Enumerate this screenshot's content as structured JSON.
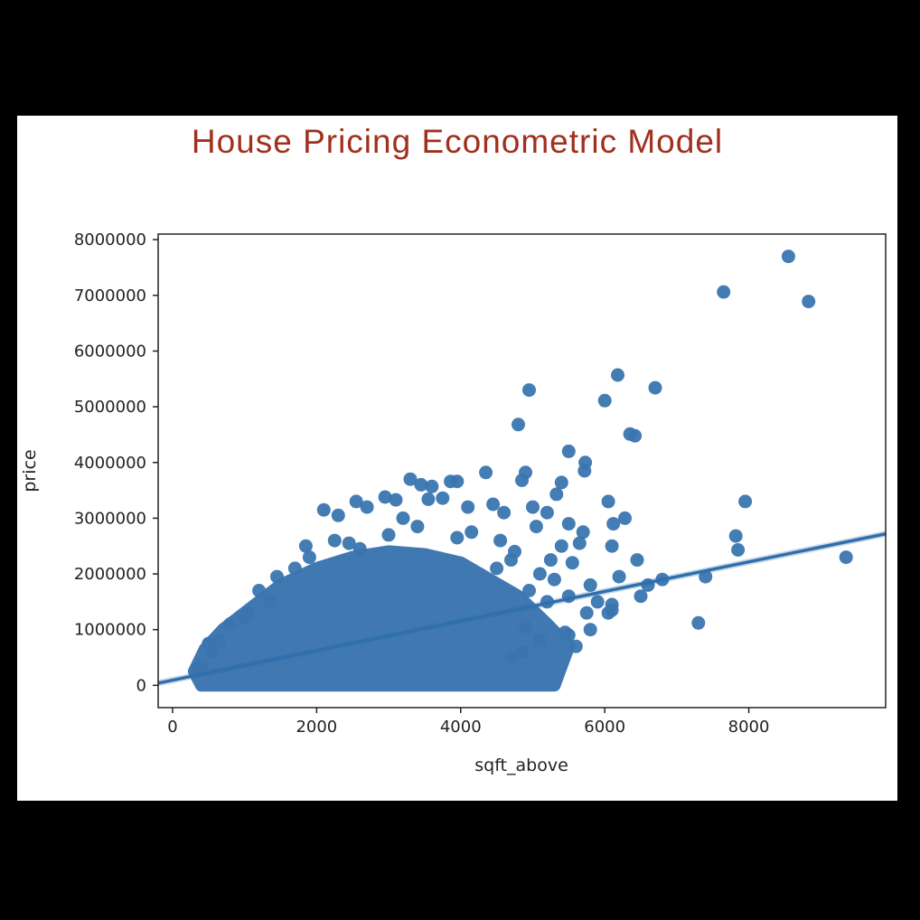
{
  "slide": {
    "title": "House Pricing Econometric Model"
  },
  "chart_data": {
    "type": "scatter",
    "title": "",
    "xlabel": "sqft_above",
    "ylabel": "price",
    "xlim": [
      -200,
      9900
    ],
    "ylim": [
      -400000,
      8100000
    ],
    "x_ticks": [
      0,
      2000,
      4000,
      6000,
      8000
    ],
    "y_ticks": [
      0,
      1000000,
      2000000,
      3000000,
      4000000,
      5000000,
      6000000,
      7000000,
      8000000
    ],
    "grid": false,
    "legend": "none",
    "colors": {
      "points": "#3a75b0",
      "line": "#2f6fac",
      "card": "#ffffff",
      "frame": "#000000"
    },
    "regression_line": {
      "x": [
        -200,
        9900
      ],
      "y": [
        40000,
        2720000
      ]
    },
    "points": [
      [
        8550,
        7700000
      ],
      [
        7650,
        7060000
      ],
      [
        8830,
        6890000
      ],
      [
        6180,
        5570000
      ],
      [
        4950,
        5300000
      ],
      [
        6700,
        5340000
      ],
      [
        6000,
        5110000
      ],
      [
        4800,
        4680000
      ],
      [
        6350,
        4510000
      ],
      [
        6420,
        4480000
      ],
      [
        5500,
        4200000
      ],
      [
        5730,
        4000000
      ],
      [
        5720,
        3850000
      ],
      [
        3300,
        3700000
      ],
      [
        3450,
        3600000
      ],
      [
        3600,
        3570000
      ],
      [
        3950,
        3660000
      ],
      [
        3860,
        3660000
      ],
      [
        4350,
        3820000
      ],
      [
        4900,
        3820000
      ],
      [
        4850,
        3680000
      ],
      [
        5400,
        3640000
      ],
      [
        5330,
        3430000
      ],
      [
        2950,
        3380000
      ],
      [
        2550,
        3300000
      ],
      [
        3100,
        3330000
      ],
      [
        3550,
        3340000
      ],
      [
        3750,
        3360000
      ],
      [
        2100,
        3150000
      ],
      [
        2300,
        3050000
      ],
      [
        2700,
        3200000
      ],
      [
        3200,
        3000000
      ],
      [
        4100,
        3200000
      ],
      [
        4450,
        3250000
      ],
      [
        4600,
        3100000
      ],
      [
        5000,
        3200000
      ],
      [
        5200,
        3100000
      ],
      [
        6050,
        3300000
      ],
      [
        6120,
        2900000
      ],
      [
        6280,
        3000000
      ],
      [
        5050,
        2850000
      ],
      [
        5500,
        2900000
      ],
      [
        5700,
        2750000
      ],
      [
        7950,
        3300000
      ],
      [
        7820,
        2680000
      ],
      [
        7850,
        2430000
      ],
      [
        9350,
        2300000
      ],
      [
        7400,
        1950000
      ],
      [
        6100,
        2500000
      ],
      [
        6450,
        2250000
      ],
      [
        6200,
        1950000
      ],
      [
        6600,
        1800000
      ],
      [
        6800,
        1900000
      ],
      [
        6500,
        1600000
      ],
      [
        5900,
        1500000
      ],
      [
        6100,
        1450000
      ],
      [
        5800,
        1800000
      ],
      [
        5550,
        2200000
      ],
      [
        5400,
        2500000
      ],
      [
        5650,
        2550000
      ],
      [
        5250,
        2250000
      ],
      [
        6050,
        1300000
      ],
      [
        6100,
        1350000
      ],
      [
        5750,
        1300000
      ],
      [
        5800,
        1000000
      ],
      [
        5450,
        950000
      ],
      [
        5100,
        800000
      ],
      [
        4850,
        600000
      ],
      [
        4700,
        500000
      ],
      [
        5500,
        900000
      ],
      [
        7300,
        1120000
      ],
      [
        5600,
        700000
      ],
      [
        4900,
        1050000
      ],
      [
        1450,
        1950000
      ],
      [
        1700,
        2100000
      ],
      [
        1900,
        2300000
      ],
      [
        1850,
        2500000
      ],
      [
        2250,
        2600000
      ],
      [
        2450,
        2550000
      ],
      [
        2600,
        2450000
      ],
      [
        3950,
        2650000
      ],
      [
        4150,
        2750000
      ],
      [
        4550,
        2600000
      ],
      [
        4750,
        2400000
      ],
      [
        4700,
        2250000
      ],
      [
        4500,
        2100000
      ],
      [
        3000,
        2700000
      ],
      [
        3400,
        2850000
      ],
      [
        1200,
        1700000
      ],
      [
        1350,
        1500000
      ],
      [
        1050,
        1300000
      ],
      [
        800,
        1100000
      ],
      [
        1000,
        1200000
      ],
      [
        500,
        750000
      ],
      [
        650,
        800000
      ],
      [
        550,
        600000
      ],
      [
        400,
        350000
      ],
      [
        350,
        300000
      ],
      [
        5500,
        1600000
      ],
      [
        5300,
        1900000
      ],
      [
        5100,
        2000000
      ],
      [
        4950,
        1700000
      ],
      [
        5200,
        1500000
      ]
    ]
  }
}
